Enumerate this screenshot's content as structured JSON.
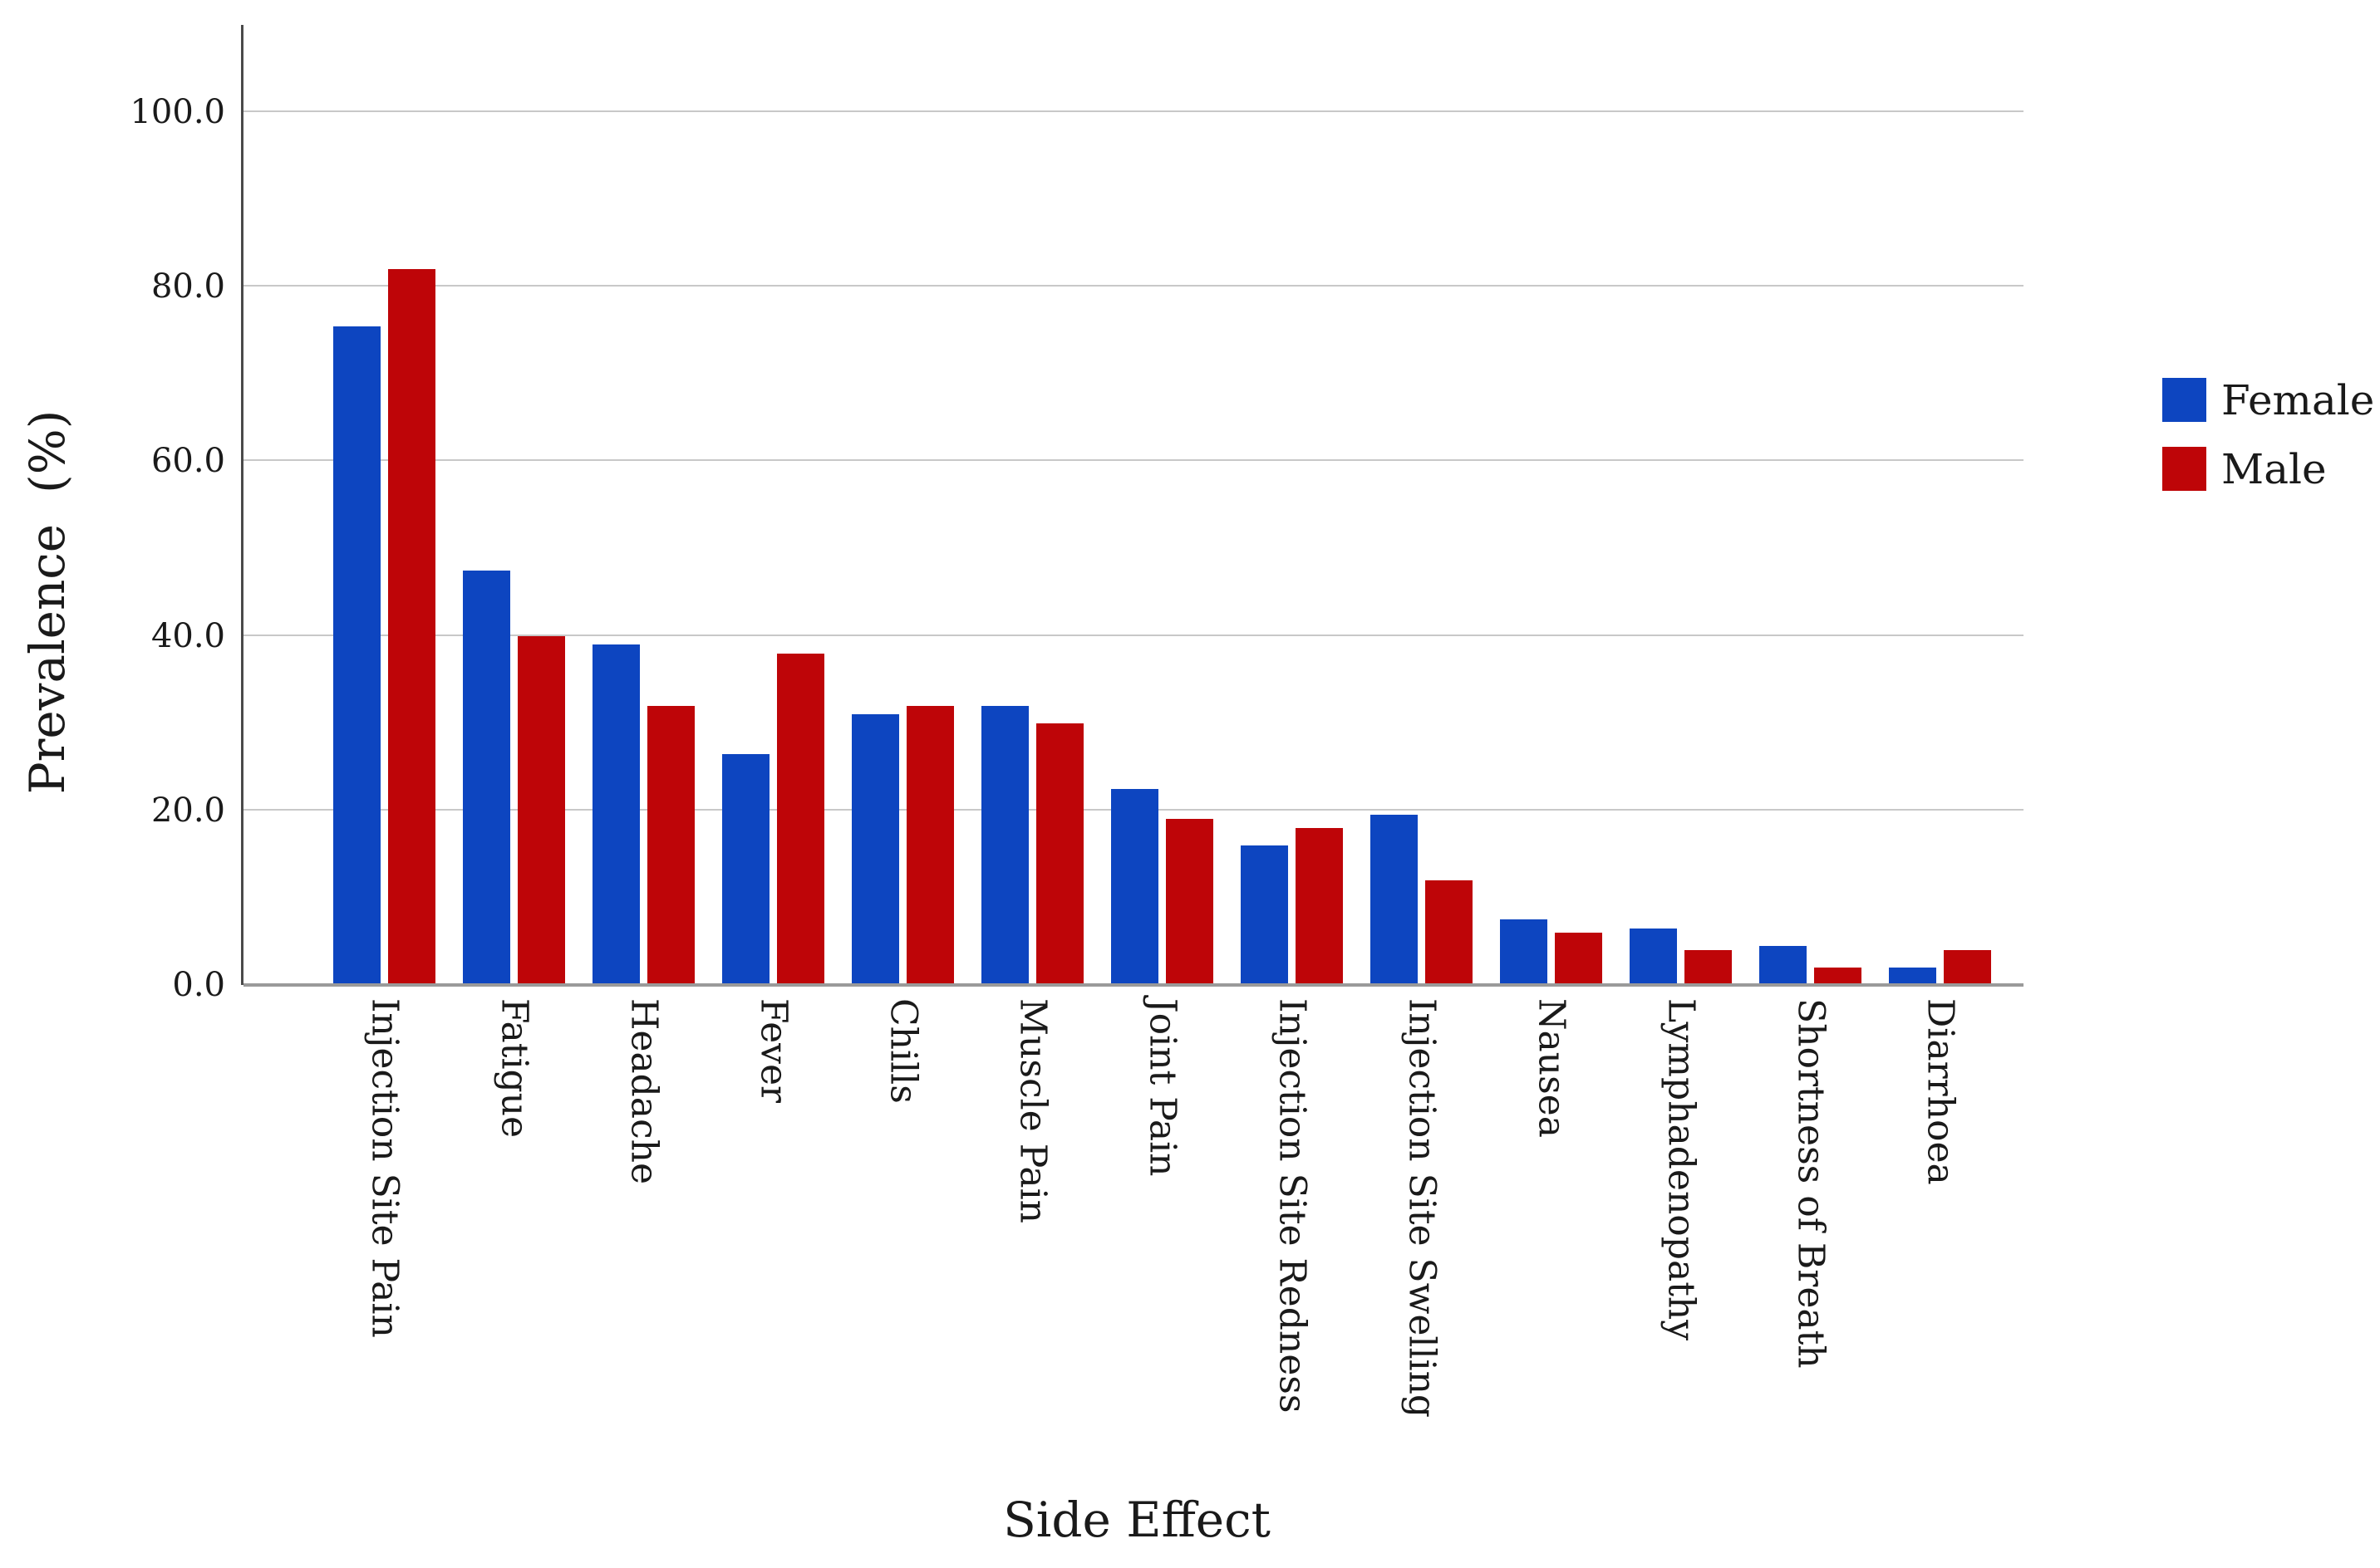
{
  "colors": {
    "female": "#0d45c0",
    "male": "#be0508",
    "grid": "#c8c8c8",
    "baseline": "#9a9a9a",
    "axis": "#4a4a4a",
    "text": "#1a1a1a",
    "background": "#ffffff"
  },
  "legend": {
    "entries": [
      {
        "label": "Female",
        "color": "#0d45c0"
      },
      {
        "label": "Male",
        "color": "#be0508"
      }
    ]
  },
  "chart_data": {
    "type": "bar",
    "title": "",
    "xlabel": "Side Effect",
    "ylabel": "Prevalence  (%)",
    "categories": [
      "Injection Site Pain",
      "Fatigue",
      "Headache",
      "Fever",
      "Chills",
      "Muscle Pain",
      "Joint Pain",
      "Injection Site Redness",
      "Injection Site Swelling",
      "Nausea",
      "Lymphadenopathy",
      "Shortness of Breath",
      "Diarrhoea"
    ],
    "series": [
      {
        "name": "Female",
        "color": "#0d45c0",
        "values": [
          75.5,
          47.5,
          39.0,
          26.5,
          31.0,
          32.0,
          22.5,
          16.0,
          19.5,
          7.5,
          6.5,
          4.5,
          2.0
        ]
      },
      {
        "name": "Male",
        "color": "#be0508",
        "values": [
          82.0,
          40.0,
          32.0,
          38.0,
          32.0,
          30.0,
          19.0,
          18.0,
          12.0,
          6.0,
          4.0,
          2.0,
          4.0
        ]
      }
    ],
    "y_ticks": [
      0,
      20,
      40,
      60,
      80,
      100
    ],
    "y_tick_labels": [
      "0.0",
      "20.0",
      "40.0",
      "60.0",
      "80.0",
      "100.0"
    ],
    "ylim": [
      0,
      110
    ],
    "grid": "horizontal",
    "legend_position": "right"
  }
}
